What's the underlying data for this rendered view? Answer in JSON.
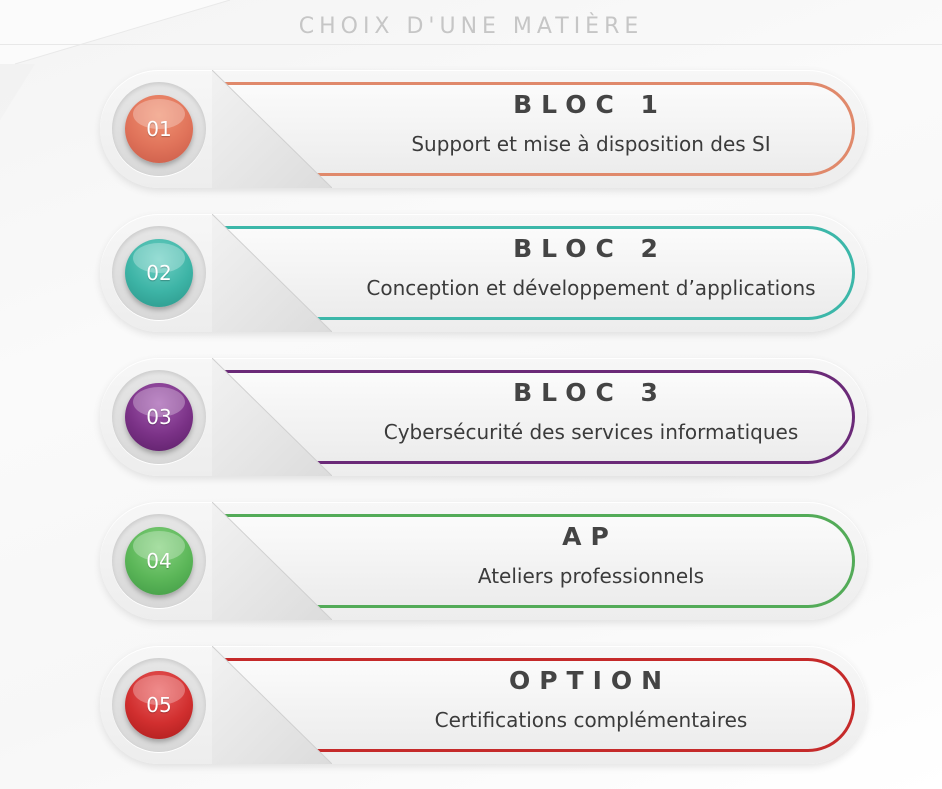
{
  "header": {
    "title": "CHOIX D'UNE MATIÈRE"
  },
  "cards": [
    {
      "number": "01",
      "title": "BLOC 1",
      "subtitle": "Support et mise à disposition des SI",
      "accent": "#e0896b"
    },
    {
      "number": "02",
      "title": "BLOC 2",
      "subtitle": "Conception et développement d’applications",
      "accent": "#3cb7a9"
    },
    {
      "number": "03",
      "title": "BLOC 3",
      "subtitle": "Cybersécurité des services informatiques",
      "accent": "#6b2a78"
    },
    {
      "number": "04",
      "title": "AP",
      "subtitle": "Ateliers professionnels",
      "accent": "#53ab58"
    },
    {
      "number": "05",
      "title": "OPTION",
      "subtitle": "Certifications complémentaires",
      "accent": "#c52a2a"
    }
  ]
}
